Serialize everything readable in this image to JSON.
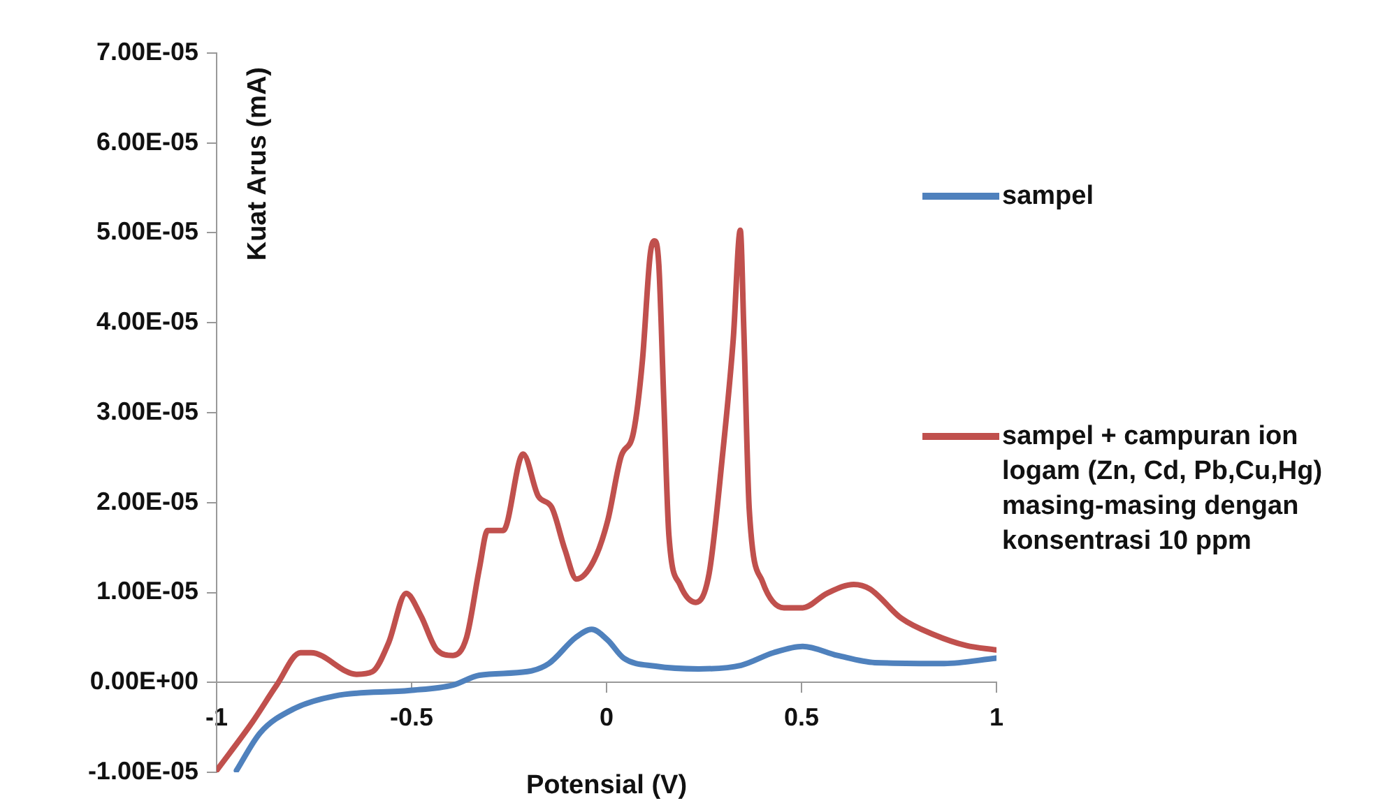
{
  "chart_data": {
    "type": "line",
    "xlabel": "Potensial (V)",
    "ylabel": "Kuat Arus (mA)",
    "xlim": [
      -1,
      1
    ],
    "xticks": [
      -1,
      -0.5,
      0,
      0.5,
      1
    ],
    "ylim": [
      -1e-05,
      7e-05
    ],
    "yticks": [
      {
        "value": -1e-05,
        "label": "-1.00E-05"
      },
      {
        "value": 0,
        "label": "0.00E+00"
      },
      {
        "value": 1e-05,
        "label": "1.00E-05"
      },
      {
        "value": 2e-05,
        "label": "2.00E-05"
      },
      {
        "value": 3e-05,
        "label": "3.00E-05"
      },
      {
        "value": 4e-05,
        "label": "4.00E-05"
      },
      {
        "value": 5e-05,
        "label": "5.00E-05"
      },
      {
        "value": 6e-05,
        "label": "6.00E-05"
      },
      {
        "value": 7e-05,
        "label": "7.00E-05"
      }
    ],
    "grid": false,
    "legend": "right",
    "marker": "none",
    "line_style": "solid",
    "series": [
      {
        "name": "sampel",
        "color": "#4f81bd",
        "x": [
          -0.949,
          -0.888,
          -0.805,
          -0.696,
          -0.504,
          -0.394,
          -0.326,
          -0.203,
          -0.148,
          -0.079,
          -0.038,
          0.003,
          0.044,
          0.126,
          0.236,
          0.345,
          0.428,
          0.503,
          0.592,
          0.688,
          0.866,
          1.0
        ],
        "values": [
          -9.8e-06,
          -5.6e-06,
          -3e-06,
          -1.5e-06,
          -9e-07,
          -3e-07,
          8e-07,
          1.2e-06,
          2.1e-06,
          5e-06,
          5.9e-06,
          4.7e-06,
          2.7e-06,
          1.8e-06,
          1.5e-06,
          1.9e-06,
          3.3e-06,
          4e-06,
          3e-06,
          2.2e-06,
          2.1e-06,
          2.7e-06
        ]
      },
      {
        "name": "sampel + campuran ion logam (Zn, Cd, Pb,Cu,Hg) masing-masing dengan konsentrasi 10 ppm",
        "color": "#c0504d",
        "x": [
          -1,
          -0.908,
          -0.846,
          -0.785,
          -0.758,
          -0.641,
          -0.6,
          -0.559,
          -0.514,
          -0.476,
          -0.435,
          -0.394,
          -0.359,
          -0.326,
          -0.305,
          -0.265,
          -0.214,
          -0.175,
          -0.141,
          -0.107,
          -0.077,
          -0.032,
          0.003,
          0.037,
          0.069,
          0.092,
          0.112,
          0.123,
          0.134,
          0.147,
          0.16,
          0.188,
          0.229,
          0.263,
          0.297,
          0.325,
          0.343,
          0.352,
          0.366,
          0.4,
          0.455,
          0.503,
          0.565,
          0.634,
          0.675,
          0.757,
          0.84,
          0.922,
          1.0
        ],
        "values": [
          -9.8e-06,
          -4.4e-06,
          -3e-07,
          3.3e-06,
          3.3e-06,
          9e-07,
          1.2e-06,
          4.4e-06,
          9.9e-06,
          7.4e-06,
          3.6e-06,
          3e-06,
          5e-06,
          1.27e-05,
          1.69e-05,
          1.69e-05,
          2.54e-05,
          2.07e-05,
          1.95e-05,
          1.48e-05,
          1.15e-05,
          1.36e-05,
          1.8e-05,
          2.51e-05,
          2.78e-05,
          3.58e-05,
          4.76e-05,
          4.91e-05,
          4.65e-05,
          3.11e-05,
          1.63e-05,
          1.09e-05,
          8.9e-06,
          1.21e-05,
          2.51e-05,
          3.82e-05,
          5.03e-05,
          3.93e-05,
          1.92e-05,
          1.12e-05,
          8.3e-06,
          8.3e-06,
          9.9e-06,
          1.09e-05,
          1.04e-05,
          7.1e-06,
          5.3e-06,
          4.1e-06,
          3.6e-06
        ]
      }
    ]
  }
}
